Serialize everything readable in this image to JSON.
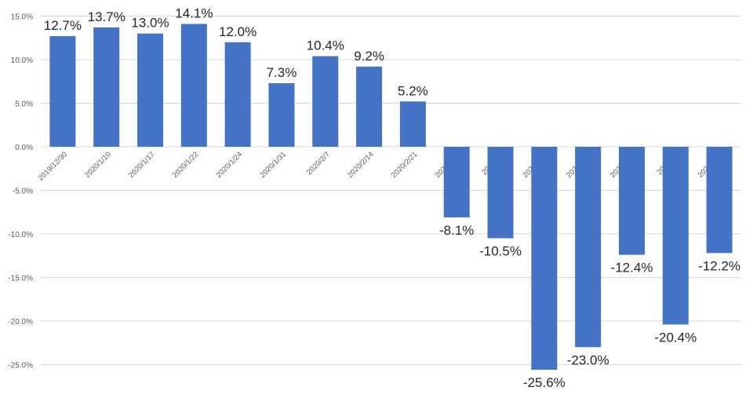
{
  "chart_data": {
    "type": "bar",
    "categories": [
      "2019/12/30",
      "2020/1/10",
      "2020/1/17",
      "2020/1/22",
      "2020/1/24",
      "2020/1/31",
      "2020/2/7",
      "2020/2/14",
      "2020/2/21",
      "2020/2/28",
      "2020/3/6",
      "2020/3/13",
      "2020/3/20",
      "2020/3/27",
      "2020/4/3",
      "2020/4/10"
    ],
    "values": [
      12.7,
      13.7,
      13.0,
      14.1,
      12.0,
      7.3,
      10.4,
      9.2,
      5.2,
      -8.1,
      -10.5,
      -25.6,
      -23.0,
      -12.4,
      -20.4,
      -12.2
    ],
    "data_labels": [
      "12.7%",
      "13.7%",
      "13.0%",
      "14.1%",
      "12.0%",
      "7.3%",
      "10.4%",
      "9.2%",
      "5.2%",
      "-8.1%",
      "-10.5%",
      "-25.6%",
      "-23.0%",
      "-12.4%",
      "-20.4%",
      "-12.2%"
    ],
    "y_ticks": [
      15,
      10,
      5,
      0,
      -5,
      -10,
      -15,
      -20,
      -25
    ],
    "y_tick_labels": [
      "15.0%",
      "10.0%",
      "5.0%",
      "0.0%",
      "-5.0%",
      "-10.0%",
      "-15.0%",
      "-20.0%",
      "-25.0%"
    ],
    "ylim": [
      -27.5,
      15
    ],
    "grid": true,
    "bar_color": "#4472C4",
    "title": "",
    "xlabel": "",
    "ylabel": ""
  }
}
